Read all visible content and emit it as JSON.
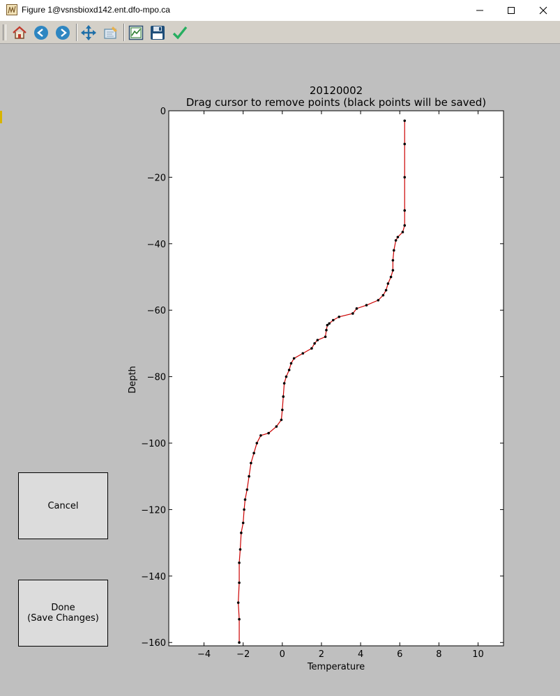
{
  "window": {
    "title": "Figure 1@vsnsbioxd142.ent.dfo-mpo.ca",
    "app_icon": "matplotlib-icon",
    "controls": [
      "minimize-icon",
      "maximize-icon",
      "close-icon"
    ]
  },
  "toolbar": {
    "buttons": [
      {
        "name": "home-icon",
        "color": "#c0392b"
      },
      {
        "name": "back-arrow-icon",
        "color": "#2e86c1"
      },
      {
        "name": "forward-arrow-icon",
        "color": "#2e86c1"
      },
      {
        "name": "pan-move-icon",
        "color": "#1f6fa8"
      },
      {
        "name": "zoom-rect-icon",
        "color": "#5d8aa8"
      },
      {
        "name": "subplots-config-icon",
        "color": "#2e7d32"
      },
      {
        "name": "save-floppy-icon",
        "color": "#1f4e79"
      },
      {
        "name": "checkmark-icon",
        "color": "#27ae60"
      }
    ]
  },
  "buttons": {
    "cancel": "Cancel",
    "done": "Done\n(Save Changes)"
  },
  "chart_data": {
    "type": "scatter",
    "title": "20120002",
    "subtitle": "Drag cursor to remove points (black points will be saved)",
    "xlabel": "Temperature",
    "ylabel": "Depth",
    "xlim": [
      -5.8,
      11.3
    ],
    "ylim": [
      -161,
      0
    ],
    "xticks": [
      -4,
      -2,
      0,
      2,
      4,
      6,
      8,
      10
    ],
    "yticks": [
      0,
      -20,
      -40,
      -60,
      -80,
      -100,
      -120,
      -140,
      -160
    ],
    "grid": false,
    "line_color": "#cc0000",
    "marker_color": "#000000",
    "profile": [
      [
        6.25,
        -3
      ],
      [
        6.25,
        -10
      ],
      [
        6.25,
        -20
      ],
      [
        6.25,
        -30
      ],
      [
        6.25,
        -34.5
      ],
      [
        6.15,
        -36.5
      ],
      [
        5.9,
        -38
      ],
      [
        5.8,
        -39
      ],
      [
        5.7,
        -42
      ],
      [
        5.65,
        -45
      ],
      [
        5.65,
        -48
      ],
      [
        5.55,
        -50
      ],
      [
        5.4,
        -52
      ],
      [
        5.3,
        -54
      ],
      [
        5.15,
        -55.5
      ],
      [
        4.9,
        -57
      ],
      [
        4.3,
        -58.5
      ],
      [
        3.8,
        -59.5
      ],
      [
        3.6,
        -61
      ],
      [
        2.9,
        -62
      ],
      [
        2.6,
        -63
      ],
      [
        2.4,
        -64
      ],
      [
        2.3,
        -64.5
      ],
      [
        2.25,
        -66
      ],
      [
        2.2,
        -68
      ],
      [
        1.8,
        -69
      ],
      [
        1.65,
        -70
      ],
      [
        1.5,
        -71.5
      ],
      [
        1.05,
        -73
      ],
      [
        0.6,
        -74.5
      ],
      [
        0.45,
        -76
      ],
      [
        0.35,
        -78
      ],
      [
        0.2,
        -80
      ],
      [
        0.1,
        -82
      ],
      [
        0.05,
        -86
      ],
      [
        0.0,
        -90
      ],
      [
        -0.05,
        -93
      ],
      [
        -0.3,
        -95
      ],
      [
        -0.7,
        -97
      ],
      [
        -1.1,
        -97.7
      ],
      [
        -1.3,
        -100
      ],
      [
        -1.45,
        -103
      ],
      [
        -1.6,
        -106
      ],
      [
        -1.7,
        -110
      ],
      [
        -1.8,
        -114
      ],
      [
        -1.9,
        -117
      ],
      [
        -1.95,
        -120
      ],
      [
        -2.0,
        -124
      ],
      [
        -2.1,
        -127
      ],
      [
        -2.15,
        -132
      ],
      [
        -2.2,
        -136
      ],
      [
        -2.2,
        -142
      ],
      [
        -2.25,
        -148
      ],
      [
        -2.2,
        -153
      ],
      [
        -2.2,
        -160
      ]
    ]
  }
}
